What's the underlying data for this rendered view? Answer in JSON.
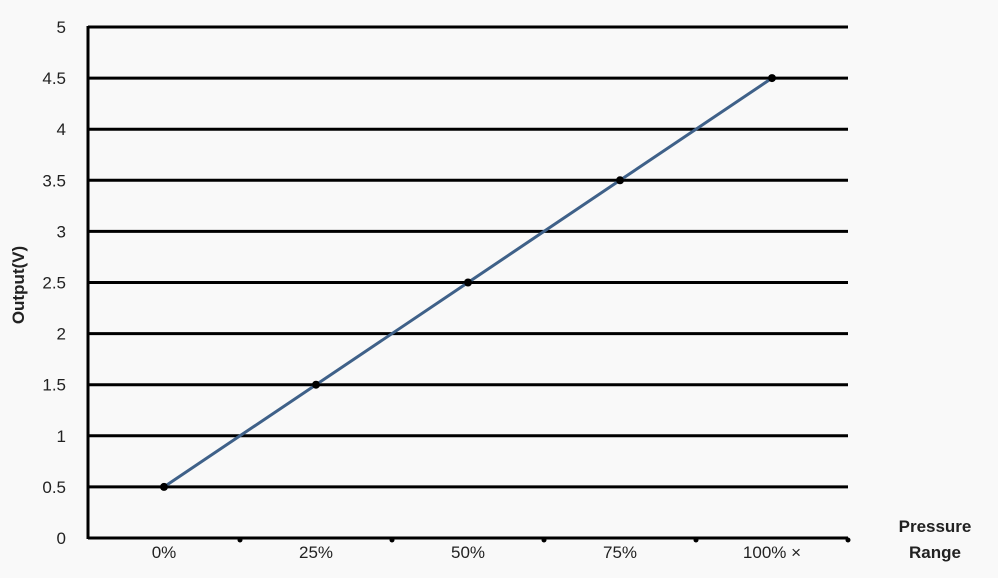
{
  "chart_data": {
    "type": "line",
    "title": "",
    "xlabel": "Pressure Range",
    "ylabel": "Output(V)",
    "categories": [
      "0%",
      "25%",
      "50%",
      "75%",
      "100% ×"
    ],
    "series": [
      {
        "values": [
          0.5,
          1.5,
          2.5,
          3.5,
          4.5
        ]
      }
    ],
    "ylim": [
      0,
      5
    ],
    "yticks": [
      "0",
      "0.5",
      "1",
      "1.5",
      "2",
      "2.5",
      "3",
      "3.5",
      "4",
      "4.5",
      "5"
    ],
    "grid": true,
    "colors": {
      "line": "#3f6189",
      "grid": "#000000",
      "point": "#000000"
    }
  }
}
